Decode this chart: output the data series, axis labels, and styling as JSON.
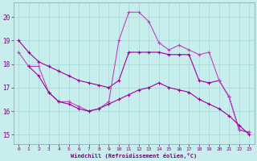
{
  "background_color": "#c8eded",
  "grid_color": "#a0d8d8",
  "line_color1": "#990099",
  "line_color2": "#bb44bb",
  "xlabel": "Windchill (Refroidissement éolien,°C)",
  "ylim_low": 14.6,
  "ylim_high": 20.6,
  "yticks": [
    15,
    16,
    17,
    18,
    19,
    20
  ],
  "xticks": [
    0,
    1,
    2,
    3,
    4,
    5,
    6,
    7,
    8,
    9,
    10,
    11,
    12,
    13,
    14,
    15,
    16,
    17,
    18,
    19,
    20,
    21,
    22,
    23
  ],
  "line_A_x": [
    0,
    1,
    2,
    3,
    4,
    5,
    6,
    7,
    8,
    9,
    10,
    11,
    12,
    13,
    14,
    15,
    16,
    17,
    18,
    19,
    20,
    21,
    22,
    23
  ],
  "line_A_y": [
    19.0,
    18.5,
    18.1,
    17.9,
    17.7,
    17.5,
    17.3,
    17.2,
    17.1,
    17.0,
    17.3,
    18.5,
    18.5,
    18.5,
    18.5,
    18.4,
    18.4,
    18.4,
    17.3,
    17.2,
    17.3,
    16.6,
    15.2,
    15.1
  ],
  "line_B_x": [
    0,
    1,
    2,
    3,
    4,
    5,
    6,
    7,
    8,
    9,
    10,
    11,
    12,
    13,
    14,
    15,
    16,
    17,
    18,
    19,
    20,
    21,
    22,
    23
  ],
  "line_B_y": [
    18.5,
    17.9,
    17.9,
    16.8,
    16.4,
    16.4,
    16.2,
    16.0,
    16.1,
    16.4,
    19.0,
    20.2,
    20.2,
    19.8,
    18.9,
    18.6,
    18.8,
    18.6,
    18.4,
    18.5,
    17.3,
    16.6,
    15.2,
    15.1
  ],
  "line_C_x": [
    1,
    2,
    3,
    4,
    5,
    6,
    7,
    8,
    9,
    10,
    11,
    12,
    13,
    14,
    15,
    16,
    17,
    18,
    19,
    20,
    21,
    22,
    23
  ],
  "line_C_y": [
    17.9,
    17.5,
    16.8,
    16.4,
    16.3,
    16.1,
    16.0,
    16.1,
    16.3,
    16.5,
    16.7,
    16.9,
    17.0,
    17.2,
    17.0,
    16.9,
    16.8,
    16.5,
    16.3,
    16.1,
    15.8,
    15.4,
    15.0
  ]
}
